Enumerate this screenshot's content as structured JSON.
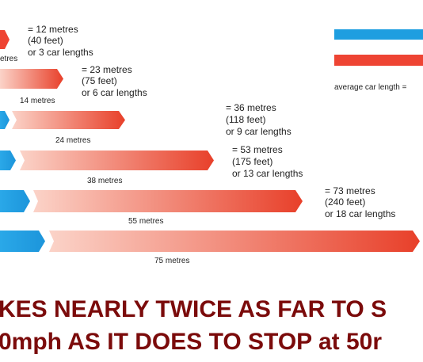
{
  "rows": [
    {
      "bar_label": "etres",
      "lines": [
        "= 12 metres",
        "(40 feet)",
        "or 3 car lengths"
      ]
    },
    {
      "bar_label": "14 metres",
      "lines": [
        "= 23 metres",
        "(75 feet)",
        "or 6 car lengths"
      ]
    },
    {
      "bar_label": "24 metres",
      "lines": [
        "= 36 metres",
        "(118 feet)",
        "or 9 car lengths"
      ]
    },
    {
      "bar_label": "38 metres",
      "lines": [
        "= 53 metres",
        "(175 feet)",
        "or 13 car lengths"
      ]
    },
    {
      "bar_label": "55 metres",
      "lines": [
        "= 73 metres",
        "(240 feet)",
        "or 18 car lengths"
      ]
    },
    {
      "bar_label": "75 metres"
    }
  ],
  "legend": {
    "car_length": "average car length ="
  },
  "caption": [
    "KES NEARLY TWICE AS FAR TO S",
    "0mph AS IT DOES TO STOP at 50r"
  ]
}
